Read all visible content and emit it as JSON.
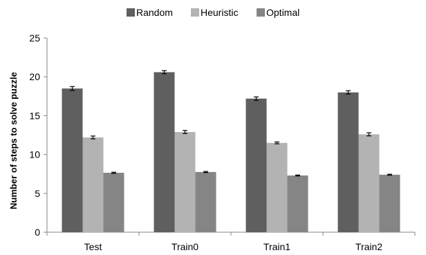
{
  "chart_data": {
    "type": "bar",
    "title": "",
    "xlabel": "",
    "ylabel": "Number of steps to solve  puzzle",
    "ylim": [
      0,
      25
    ],
    "yticks": [
      0,
      5,
      10,
      15,
      20,
      25
    ],
    "grid": false,
    "legend_position": "top",
    "categories": [
      "Test",
      "Train0",
      "Train1",
      "Train2"
    ],
    "series": [
      {
        "name": "Random",
        "color": "#5f5f5f",
        "values": [
          18.5,
          20.6,
          17.2,
          18.0
        ],
        "errors": [
          0.25,
          0.2,
          0.22,
          0.22
        ]
      },
      {
        "name": "Heuristic",
        "color": "#b3b3b3",
        "values": [
          12.2,
          12.9,
          11.5,
          12.6
        ],
        "errors": [
          0.18,
          0.2,
          0.12,
          0.2
        ]
      },
      {
        "name": "Optimal",
        "color": "#858585",
        "values": [
          7.65,
          7.75,
          7.3,
          7.4
        ],
        "errors": [
          0.07,
          0.07,
          0.06,
          0.06
        ]
      }
    ]
  }
}
